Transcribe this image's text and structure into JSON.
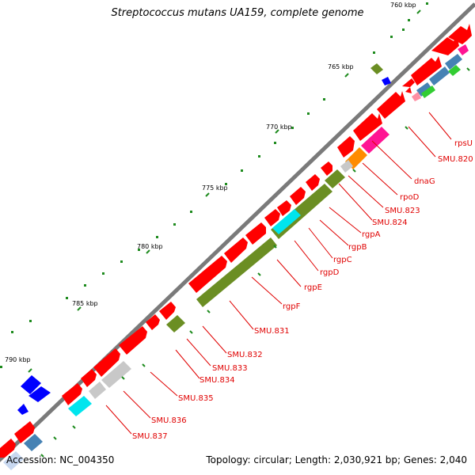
{
  "title": "Streptococcus mutans UA159, complete genome",
  "footer": {
    "accession": "Accession: NC_004350",
    "summary": "Topology: circular; Length: 2,030,921 bp; Genes: 2,040"
  },
  "kbp_labels": [
    "760 kbp",
    "765 kbp",
    "770 kbp",
    "775 kbp",
    "780 kbp",
    "785 kbp",
    "790 kbp"
  ],
  "gene_labels": [
    "rpsU",
    "SMU.820",
    "dnaG",
    "rpoD",
    "SMU.823",
    "SMU.824",
    "rgpA",
    "rgpB",
    "rgpC",
    "rgpD",
    "rgpE",
    "rgpF",
    "SMU.831",
    "SMU.832",
    "SMU.833",
    "SMU.834",
    "SMU.835",
    "SMU.836",
    "SMU.837"
  ],
  "colors": {
    "backbone": "#808080",
    "forward_cds": "#ff0000",
    "olive_feature": "#6b8e23",
    "magenta": "#ff1493",
    "orange": "#ff8c00",
    "cyan": "#00e5ee",
    "steelblue": "#4682b4",
    "green": "#32cd32",
    "lightgray": "#c8c8c8",
    "blue": "#0000ff",
    "label_red": "#e00000",
    "tick_green": "#1e8b1e"
  }
}
